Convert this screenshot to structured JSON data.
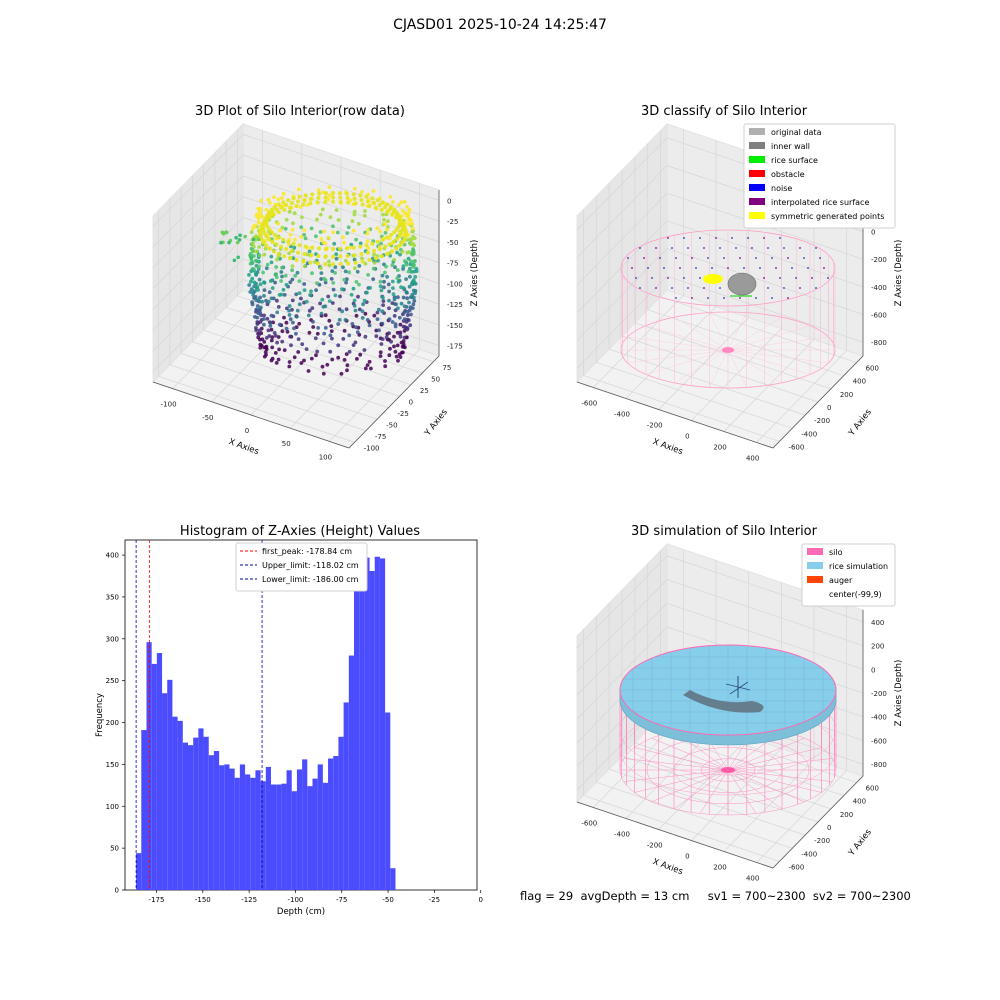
{
  "suptitle": "CJASD01 2025-10-24 14:25:47",
  "chart_data": [
    {
      "type": "scatter",
      "title": "3D Plot of Silo Interior(row data)",
      "xlabel": "X Axies",
      "ylabel": "Y Axies",
      "zlabel": "Z Axies (Depth)",
      "x_ticks": [
        -100,
        -50,
        0,
        50,
        100
      ],
      "y_ticks": [
        -100,
        -75,
        -50,
        -25,
        0,
        25,
        50,
        75
      ],
      "z_ticks": [
        0,
        -25,
        -50,
        -75,
        -100,
        -125,
        -150,
        -175
      ],
      "colormap": "viridis"
    },
    {
      "type": "scatter",
      "title": "3D classify of Silo Interior",
      "xlabel": "X Axies",
      "ylabel": "Y Axies",
      "zlabel": "Z Axies (Depth)",
      "x_ticks": [
        -600,
        -400,
        -200,
        0,
        200,
        400
      ],
      "y_ticks": [
        -600,
        -400,
        -200,
        0,
        200,
        400,
        600
      ],
      "z_ticks": [
        200,
        0,
        -200,
        -400,
        -600,
        -800
      ],
      "legend": [
        {
          "label": "original data",
          "color": "#b0b0b0"
        },
        {
          "label": "inner wall",
          "color": "#808080"
        },
        {
          "label": "rice surface",
          "color": "#00ee00"
        },
        {
          "label": "obstacle",
          "color": "#ff0000"
        },
        {
          "label": "noise",
          "color": "#0000ff"
        },
        {
          "label": "interpolated rice surface",
          "color": "#800080"
        },
        {
          "label": "symmetric generated points",
          "color": "#ffff00"
        }
      ]
    },
    {
      "type": "bar",
      "title": "Histogram of Z-Axies (Height) Values",
      "xlabel": "Depth (cm)",
      "ylabel": "Frequency",
      "xlim": [
        -192,
        -2
      ],
      "ylim": [
        0,
        418
      ],
      "x_ticks": [
        -175,
        -150,
        -125,
        -100,
        -75,
        -50,
        -25,
        0
      ],
      "y_ticks": [
        0,
        50,
        100,
        150,
        200,
        250,
        300,
        350,
        400
      ],
      "bar_color": "#4c4cff",
      "bin_start": -186,
      "bin_width": 2.8,
      "values": [
        44,
        191,
        296,
        270,
        283,
        235,
        251,
        207,
        202,
        176,
        173,
        182,
        193,
        183,
        161,
        166,
        149,
        150,
        145,
        134,
        150,
        138,
        134,
        143,
        130,
        147,
        126,
        126,
        127,
        143,
        118,
        144,
        156,
        124,
        133,
        150,
        128,
        157,
        160,
        183,
        224,
        280,
        369,
        367,
        397,
        381,
        398,
        396,
        212,
        26
      ],
      "lines": [
        {
          "label": "first_peak: -178.84 cm",
          "x": -178.84,
          "color": "#ff0000"
        },
        {
          "label": "Upper_limit: -118.02 cm",
          "x": -118.02,
          "color": "#0000aa"
        },
        {
          "label": "Lower_limit: -186.00 cm",
          "x": -186.0,
          "color": "#0000aa"
        }
      ]
    },
    {
      "type": "scatter",
      "title": "3D simulation of Silo Interior",
      "xlabel": "X Axies",
      "ylabel": "Y Axies",
      "zlabel": "Z Axies (Depth)",
      "x_ticks": [
        -600,
        -400,
        -200,
        0,
        200,
        400
      ],
      "y_ticks": [
        -600,
        -400,
        -200,
        0,
        200,
        400,
        600
      ],
      "z_ticks": [
        400,
        200,
        0,
        -200,
        -400,
        -600,
        -800
      ],
      "legend": [
        {
          "label": "silo",
          "color": "#ff69b4"
        },
        {
          "label": "rice simulation",
          "color": "#87ceeb"
        },
        {
          "label": "auger",
          "color": "#ff4500"
        },
        {
          "label": "center(-99,9)",
          "color": "#ffffff"
        }
      ]
    }
  ],
  "status_line": "flag = 29  avgDepth = 13 cm     sv1 = 700~2300  sv2 = 700~2300"
}
